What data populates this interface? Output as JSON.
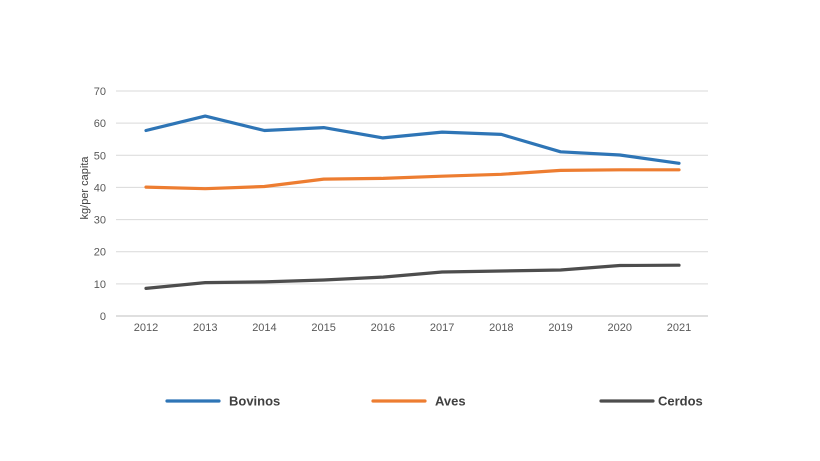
{
  "chart_data": {
    "type": "line",
    "title": "",
    "xlabel": "",
    "ylabel": "kg/per capita",
    "ylim": [
      0,
      70
    ],
    "yticks": [
      0,
      10,
      20,
      30,
      40,
      50,
      60,
      70
    ],
    "categories": [
      "2012",
      "2013",
      "2014",
      "2015",
      "2016",
      "2017",
      "2018",
      "2019",
      "2020",
      "2021"
    ],
    "grid": true,
    "legend_position": "bottom",
    "series": [
      {
        "name": "Bovinos",
        "color": "#2e75b6",
        "values": [
          57.7,
          62.2,
          57.7,
          58.6,
          55.4,
          57.2,
          56.5,
          51.1,
          50.1,
          47.5
        ]
      },
      {
        "name": "Aves",
        "color": "#ed7d31",
        "values": [
          40.1,
          39.6,
          40.3,
          42.6,
          42.8,
          43.5,
          44.1,
          45.3,
          45.5,
          45.5
        ]
      },
      {
        "name": "Cerdos",
        "color": "#4d4d4d",
        "values": [
          8.6,
          10.4,
          10.6,
          11.2,
          12.1,
          13.7,
          14.0,
          14.3,
          15.7,
          15.8
        ]
      }
    ]
  }
}
